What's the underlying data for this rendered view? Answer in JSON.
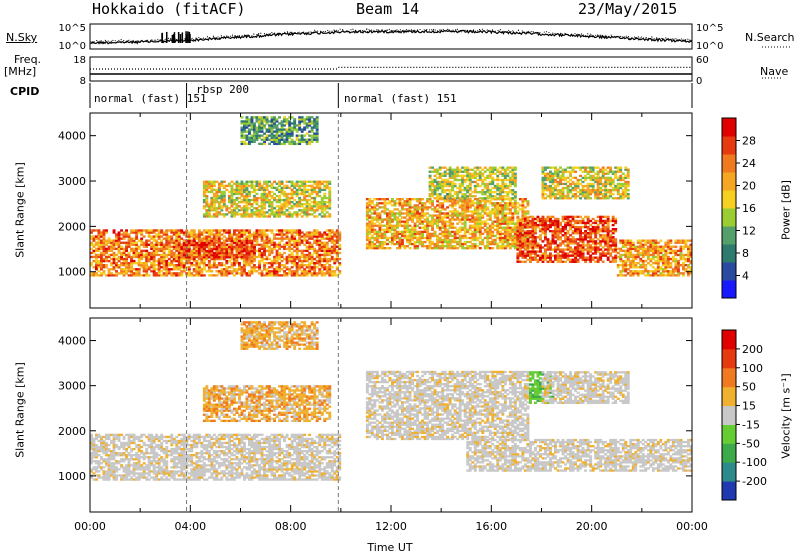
{
  "header": {
    "station": "Hokkaido (fitACF)",
    "beam": "Beam 14",
    "date": "23/May/2015"
  },
  "side_labels": {
    "nsky": "N.Sky",
    "freq_line1": "Freq.",
    "freq_line2": "[MHz]",
    "cpid": "CPID",
    "nsearch": "N.Search",
    "nave": "Nave"
  },
  "chart_data": [
    {
      "type": "line",
      "panel": "noise",
      "series": [
        {
          "name": "N.Sky",
          "style": "solid"
        },
        {
          "name": "N.Search",
          "style": "dotted"
        }
      ],
      "y_ticks_left": [
        "10^5",
        "10^0"
      ],
      "y_ticks_right": [
        "10^5",
        "10^0"
      ],
      "x": [
        0,
        2,
        4,
        6,
        8,
        10,
        12,
        14,
        16,
        18,
        20,
        22,
        24
      ],
      "y_sky_level": [
        0.25,
        0.28,
        0.35,
        0.48,
        0.6,
        0.68,
        0.7,
        0.7,
        0.68,
        0.6,
        0.5,
        0.4,
        0.3
      ]
    },
    {
      "type": "line",
      "panel": "frequency",
      "y_ticks_left": [
        "18",
        "8"
      ],
      "y_ticks_right": [
        "60",
        "0"
      ],
      "freq_mhz": [
        {
          "from": 0,
          "to": 24,
          "value": 10.9
        }
      ],
      "nave": [
        {
          "from": 0,
          "to": 9.9,
          "value": 30
        },
        {
          "from": 9.9,
          "to": 24,
          "value": 34
        }
      ]
    },
    {
      "type": "table",
      "panel": "cpid",
      "segments": [
        {
          "start": 0.0,
          "end": 3.85,
          "label": "normal (fast) 151"
        },
        {
          "start": 3.85,
          "end": 9.9,
          "label": "rbsp 200"
        },
        {
          "start": 9.9,
          "end": 24.0,
          "label": "normal (fast) 151"
        }
      ]
    },
    {
      "type": "heatmap",
      "panel": "power",
      "ylabel": "Slant Range [km]",
      "ylim": [
        200,
        4500
      ],
      "y_ticks": [
        1000,
        2000,
        3000,
        4000
      ],
      "colorbar_label": "Power [dB]",
      "colorbar_ticks": [
        "4",
        "8",
        "12",
        "16",
        "20",
        "24",
        "28"
      ],
      "colorbar_colors": [
        "#1919ff",
        "#2a4aa0",
        "#2f7a6f",
        "#55a06a",
        "#9acd32",
        "#f5d020",
        "#f5a623",
        "#f07a20",
        "#e83a10",
        "#e00000"
      ],
      "regions": [
        {
          "t0": 0.0,
          "t1": 9.9,
          "r0": 900,
          "r1": 1900,
          "level": 0.75
        },
        {
          "t0": 3.5,
          "t1": 6.5,
          "r0": 1300,
          "r1": 1700,
          "level": 0.9
        },
        {
          "t0": 4.5,
          "t1": 9.5,
          "r0": 2200,
          "r1": 3000,
          "level": 0.55
        },
        {
          "t0": 6.0,
          "t1": 9.0,
          "r0": 3800,
          "r1": 4400,
          "level": 0.3
        },
        {
          "t0": 11.0,
          "t1": 17.5,
          "r0": 1500,
          "r1": 2600,
          "level": 0.65
        },
        {
          "t0": 13.5,
          "t1": 17.0,
          "r0": 2600,
          "r1": 3300,
          "level": 0.5
        },
        {
          "t0": 17.0,
          "t1": 21.0,
          "r0": 1200,
          "r1": 2200,
          "level": 0.85
        },
        {
          "t0": 18.0,
          "t1": 21.5,
          "r0": 2600,
          "r1": 3300,
          "level": 0.55
        },
        {
          "t0": 21.0,
          "t1": 24.0,
          "r0": 900,
          "r1": 1700,
          "level": 0.7
        }
      ]
    },
    {
      "type": "heatmap",
      "panel": "velocity",
      "ylabel": "Slant Range [km]",
      "xlabel": "Time UT",
      "ylim": [
        200,
        4500
      ],
      "y_ticks": [
        1000,
        2000,
        3000,
        4000
      ],
      "x_ticks": [
        "00:00",
        "04:00",
        "08:00",
        "12:00",
        "16:00",
        "20:00",
        "00:00"
      ],
      "colorbar_label": "Velocity [m s⁻¹]",
      "colorbar_ticks": [
        "200",
        "100",
        "50",
        "15",
        "-15",
        "-50",
        "-100",
        "-200"
      ],
      "colorbar_colors": [
        "#2038b0",
        "#2c8a8a",
        "#3caa4a",
        "#66cc33",
        "#c8c8c8",
        "#f0b030",
        "#f07a20",
        "#e83a10",
        "#e00000"
      ],
      "regions": [
        {
          "t0": 0.0,
          "t1": 9.9,
          "r0": 900,
          "r1": 1900,
          "cls": "gray"
        },
        {
          "t0": 4.5,
          "t1": 9.5,
          "r0": 2200,
          "r1": 3000,
          "cls": "orange"
        },
        {
          "t0": 6.0,
          "t1": 9.0,
          "r0": 3800,
          "r1": 4400,
          "cls": "orange"
        },
        {
          "t0": 11.0,
          "t1": 17.5,
          "r0": 1800,
          "r1": 3300,
          "cls": "gray"
        },
        {
          "t0": 17.5,
          "t1": 18.5,
          "r0": 2600,
          "r1": 3300,
          "cls": "green"
        },
        {
          "t0": 15.0,
          "t1": 24.0,
          "r0": 1100,
          "r1": 1800,
          "cls": "gray"
        },
        {
          "t0": 18.0,
          "t1": 21.5,
          "r0": 2600,
          "r1": 3300,
          "cls": "gray"
        }
      ]
    }
  ]
}
